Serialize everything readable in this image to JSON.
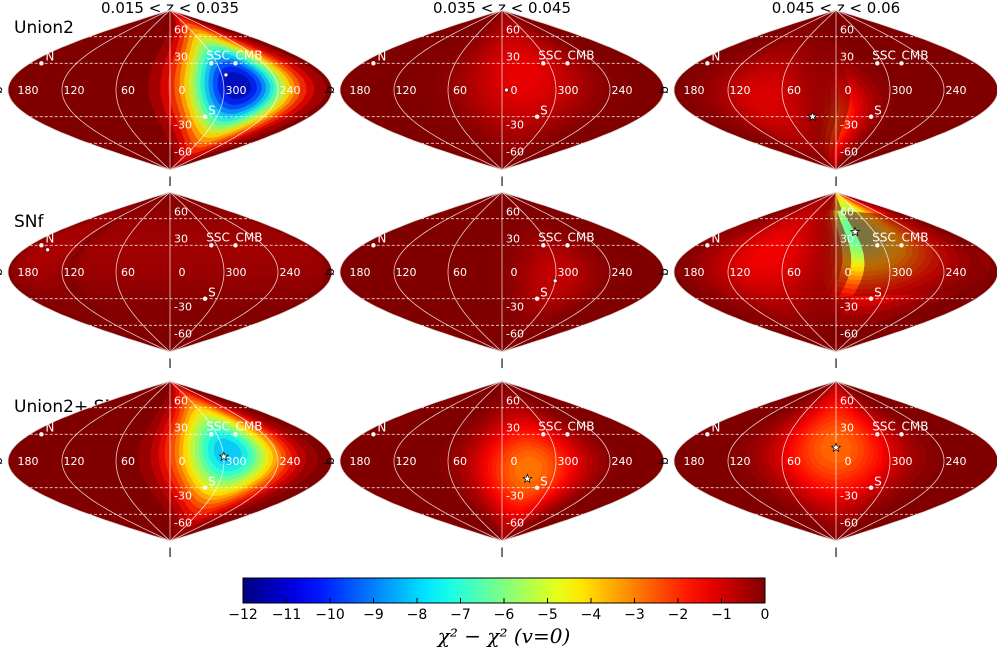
{
  "chart_data": {
    "type": "heatmap",
    "projection": "sanson-flamsteed (sinusoidal), galactic coordinates",
    "column_titles": [
      "0.015 <  z <  0.035",
      "0.035 <  z <  0.045",
      "0.045 <  z <  0.06"
    ],
    "row_titles": [
      "Union2",
      "SNf",
      "Union2+ SNf"
    ],
    "axis_labels": {
      "b": "b",
      "l": "l"
    },
    "lon_ticks": [
      "180",
      "120",
      "60",
      "0",
      "300",
      "240"
    ],
    "lat_ticks": [
      "60",
      "30",
      "-30",
      "-60"
    ],
    "lon_tick_values": [
      180,
      120,
      60,
      0,
      300,
      240
    ],
    "lat_tick_values": [
      60,
      30,
      -30,
      -60
    ],
    "markers": [
      {
        "label": "N",
        "l": 165,
        "b": 30
      },
      {
        "label": "S",
        "l": 315,
        "b": -30
      },
      {
        "label": "SSC",
        "l": 307,
        "b": 30
      },
      {
        "label": "CMB",
        "l": 276,
        "b": 30
      }
    ],
    "colorbar": {
      "label": "χ² − χ² (v=0)",
      "range": [
        -12,
        0
      ],
      "ticks": [
        "-12",
        "-11",
        "-10",
        "-9",
        "-8",
        "-7",
        "-6",
        "-5",
        "-4",
        "-3",
        "-2",
        "-1",
        "0"
      ]
    },
    "panels": [
      {
        "row": 0,
        "col": 0,
        "best_fit_marker": "dot",
        "best_fit": {
          "l": 295,
          "b": 17
        },
        "features": [
          {
            "l": 285,
            "b": 5,
            "amp": -12.5,
            "sigma_deg": 42
          }
        ]
      },
      {
        "row": 0,
        "col": 1,
        "best_fit_marker": "dot",
        "best_fit": {
          "l": 355,
          "b": 0
        },
        "features": [
          {
            "l": 335,
            "b": 15,
            "amp": -1.4,
            "sigma_deg": 48
          }
        ]
      },
      {
        "row": 0,
        "col": 2,
        "best_fit_marker": "star",
        "best_fit": {
          "l": 30,
          "b": -30
        },
        "features": [
          {
            "l": 30,
            "b": -30,
            "amp": -4.0,
            "sigma_deg": 36
          },
          {
            "l": 80,
            "b": -10,
            "amp": -1.2,
            "sigma_deg": 40
          }
        ]
      },
      {
        "row": 1,
        "col": 0,
        "best_fit_marker": "dot",
        "best_fit": {
          "l": 150,
          "b": 25
        },
        "features": [
          {
            "l": 145,
            "b": 25,
            "amp": -0.6,
            "sigma_deg": 40
          }
        ]
      },
      {
        "row": 1,
        "col": 1,
        "best_fit_marker": "dot",
        "best_fit": {
          "l": 300,
          "b": -10
        },
        "features": [
          {
            "l": 300,
            "b": -5,
            "amp": -0.9,
            "sigma_deg": 32
          }
        ]
      },
      {
        "row": 1,
        "col": 2,
        "best_fit_marker": "star",
        "best_fit": {
          "l": 330,
          "b": 45
        },
        "features": [
          {
            "l": 330,
            "b": 45,
            "amp": -7.0,
            "sigma_deg": 46
          },
          {
            "l": 80,
            "b": 20,
            "amp": -1.5,
            "sigma_deg": 45
          }
        ]
      },
      {
        "row": 2,
        "col": 0,
        "best_fit_marker": "star",
        "best_fit": {
          "l": 300,
          "b": 5
        },
        "features": [
          {
            "l": 295,
            "b": 10,
            "amp": -9.0,
            "sigma_deg": 42
          }
        ]
      },
      {
        "row": 2,
        "col": 1,
        "best_fit_marker": "star",
        "best_fit": {
          "l": 330,
          "b": -20
        },
        "features": [
          {
            "l": 330,
            "b": -10,
            "amp": -3.2,
            "sigma_deg": 42
          }
        ]
      },
      {
        "row": 2,
        "col": 2,
        "best_fit_marker": "star",
        "best_fit": {
          "l": 0,
          "b": 15
        },
        "features": [
          {
            "l": 0,
            "b": 15,
            "amp": -3.0,
            "sigma_deg": 48
          }
        ]
      }
    ]
  }
}
